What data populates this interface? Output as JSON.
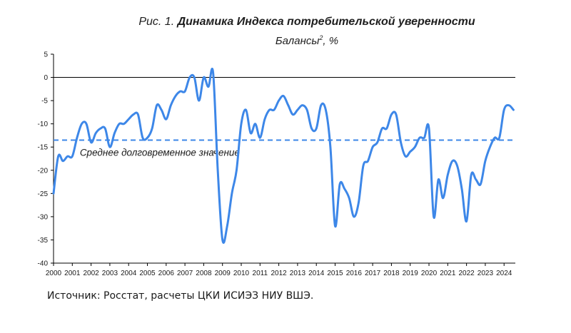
{
  "chart_data": {
    "type": "line",
    "title_prefix": "Рис. 1.",
    "title": "Динамика Индекса потребительской уверенности",
    "subtitle": "Балансы",
    "subtitle_sup": "2",
    "subtitle_suffix": ", %",
    "xlim": [
      2000,
      2024.6
    ],
    "ylim": [
      -40,
      5
    ],
    "y_ticks": [
      5,
      0,
      -5,
      -10,
      -15,
      -20,
      -25,
      -30,
      -35,
      -40
    ],
    "x_ticks": [
      "2000",
      "2001",
      "2002",
      "2003",
      "2004",
      "2005",
      "2006",
      "2007",
      "2008",
      "2009",
      "2010",
      "2011",
      "2012",
      "2013",
      "2014",
      "2015",
      "2016",
      "2017",
      "2018",
      "2019",
      "2020",
      "2021",
      "2022",
      "2023",
      "2024"
    ],
    "grid": false,
    "reference_line": {
      "value": -13.5,
      "label": "Среднее долговременное значение",
      "style": "dashed"
    },
    "series": [
      {
        "color": "#3d87e8",
        "points": [
          [
            2000.0,
            -25
          ],
          [
            2000.25,
            -17
          ],
          [
            2000.5,
            -18
          ],
          [
            2000.75,
            -17
          ],
          [
            2001.0,
            -17
          ],
          [
            2001.25,
            -13
          ],
          [
            2001.5,
            -10
          ],
          [
            2001.75,
            -10
          ],
          [
            2002.0,
            -14
          ],
          [
            2002.25,
            -12
          ],
          [
            2002.5,
            -11
          ],
          [
            2002.75,
            -11
          ],
          [
            2003.0,
            -15
          ],
          [
            2003.25,
            -12
          ],
          [
            2003.5,
            -10
          ],
          [
            2003.75,
            -10
          ],
          [
            2004.0,
            -9
          ],
          [
            2004.25,
            -8
          ],
          [
            2004.5,
            -8
          ],
          [
            2004.75,
            -13
          ],
          [
            2005.0,
            -13
          ],
          [
            2005.25,
            -11
          ],
          [
            2005.5,
            -6
          ],
          [
            2005.75,
            -7
          ],
          [
            2006.0,
            -9
          ],
          [
            2006.25,
            -6
          ],
          [
            2006.5,
            -4
          ],
          [
            2006.75,
            -3
          ],
          [
            2007.0,
            -3
          ],
          [
            2007.25,
            0
          ],
          [
            2007.5,
            0
          ],
          [
            2007.75,
            -5
          ],
          [
            2008.0,
            0
          ],
          [
            2008.25,
            -2
          ],
          [
            2008.5,
            1
          ],
          [
            2008.75,
            -20
          ],
          [
            2009.0,
            -35
          ],
          [
            2009.25,
            -32
          ],
          [
            2009.5,
            -25
          ],
          [
            2009.75,
            -20
          ],
          [
            2010.0,
            -10
          ],
          [
            2010.25,
            -7
          ],
          [
            2010.5,
            -12
          ],
          [
            2010.75,
            -10
          ],
          [
            2011.0,
            -13
          ],
          [
            2011.25,
            -9
          ],
          [
            2011.5,
            -7
          ],
          [
            2011.75,
            -7
          ],
          [
            2012.0,
            -5
          ],
          [
            2012.25,
            -4
          ],
          [
            2012.5,
            -6
          ],
          [
            2012.75,
            -8
          ],
          [
            2013.0,
            -7
          ],
          [
            2013.25,
            -6
          ],
          [
            2013.5,
            -7
          ],
          [
            2013.75,
            -11
          ],
          [
            2014.0,
            -11
          ],
          [
            2014.25,
            -6
          ],
          [
            2014.5,
            -7
          ],
          [
            2014.75,
            -15
          ],
          [
            2015.0,
            -32
          ],
          [
            2015.25,
            -23
          ],
          [
            2015.5,
            -24
          ],
          [
            2015.75,
            -26
          ],
          [
            2016.0,
            -30
          ],
          [
            2016.25,
            -27
          ],
          [
            2016.5,
            -19
          ],
          [
            2016.75,
            -18
          ],
          [
            2017.0,
            -15
          ],
          [
            2017.25,
            -14
          ],
          [
            2017.5,
            -11
          ],
          [
            2017.75,
            -11
          ],
          [
            2018.0,
            -8
          ],
          [
            2018.25,
            -8
          ],
          [
            2018.5,
            -14
          ],
          [
            2018.75,
            -17
          ],
          [
            2019.0,
            -16
          ],
          [
            2019.25,
            -15
          ],
          [
            2019.5,
            -13
          ],
          [
            2019.75,
            -13
          ],
          [
            2020.0,
            -11
          ],
          [
            2020.25,
            -30
          ],
          [
            2020.5,
            -22
          ],
          [
            2020.75,
            -26
          ],
          [
            2021.0,
            -21
          ],
          [
            2021.25,
            -18
          ],
          [
            2021.5,
            -19
          ],
          [
            2021.75,
            -24
          ],
          [
            2022.0,
            -31
          ],
          [
            2022.25,
            -21
          ],
          [
            2022.5,
            -22
          ],
          [
            2022.75,
            -23
          ],
          [
            2023.0,
            -18
          ],
          [
            2023.25,
            -15
          ],
          [
            2023.5,
            -13
          ],
          [
            2023.75,
            -13
          ],
          [
            2024.0,
            -7
          ],
          [
            2024.25,
            -6
          ],
          [
            2024.5,
            -7
          ]
        ]
      }
    ]
  },
  "source_text": "Источник: Росстат, расчеты ЦКИ ИСИЭЗ НИУ ВШЭ."
}
